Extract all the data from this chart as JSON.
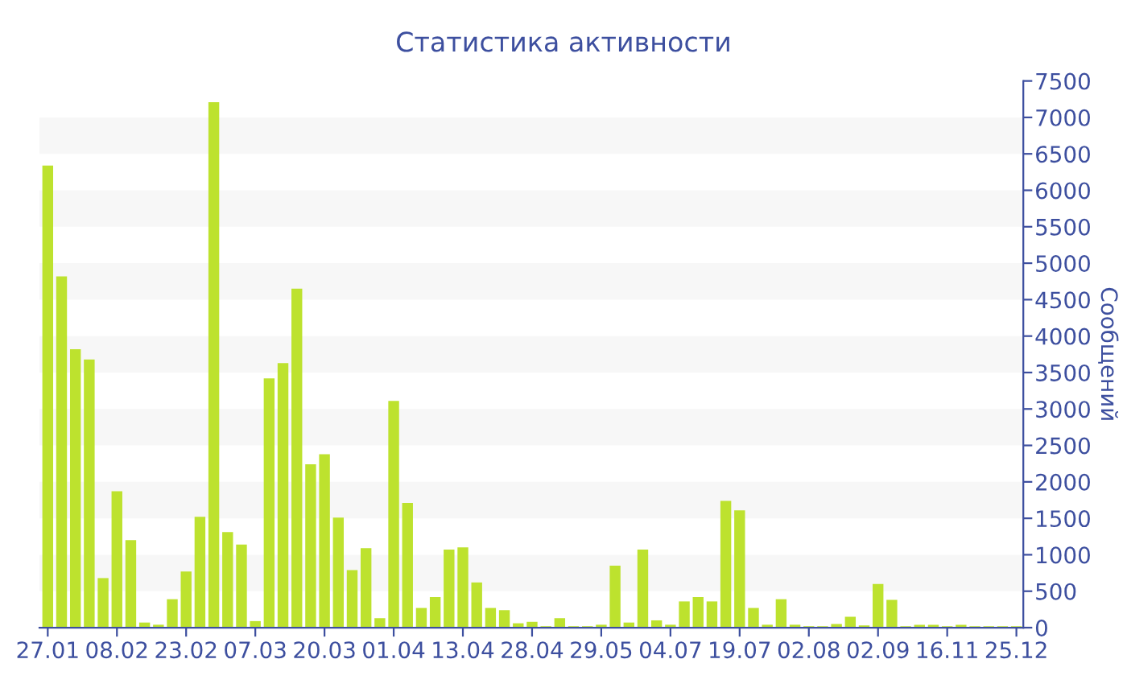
{
  "chart_data": {
    "type": "bar",
    "title": "Статистика активности",
    "ylabel": "Сообщений",
    "categories": [
      "27.01",
      null,
      null,
      null,
      null,
      "08.02",
      null,
      null,
      null,
      null,
      "23.02",
      null,
      null,
      null,
      null,
      "07.03",
      null,
      null,
      null,
      null,
      "20.03",
      null,
      null,
      null,
      null,
      "01.04",
      null,
      null,
      null,
      null,
      "13.04",
      null,
      null,
      null,
      null,
      "28.04",
      null,
      null,
      null,
      null,
      "29.05",
      null,
      null,
      null,
      null,
      "04.07",
      null,
      null,
      null,
      null,
      "19.07",
      null,
      null,
      null,
      null,
      "02.08",
      null,
      null,
      null,
      null,
      "02.09",
      null,
      null,
      null,
      null,
      "16.11",
      null,
      null,
      null,
      null,
      "25.12"
    ],
    "values": [
      6340,
      4820,
      3820,
      3680,
      680,
      1870,
      1200,
      70,
      40,
      390,
      770,
      1520,
      7210,
      1310,
      1140,
      90,
      3420,
      3630,
      4650,
      2240,
      2380,
      1510,
      790,
      1090,
      130,
      3110,
      1710,
      270,
      420,
      1070,
      1100,
      620,
      270,
      240,
      60,
      80,
      20,
      130,
      20,
      20,
      40,
      850,
      70,
      1070,
      100,
      40,
      360,
      420,
      360,
      1740,
      1610,
      270,
      40,
      390,
      40,
      20,
      20,
      50,
      150,
      30,
      600,
      380,
      20,
      40,
      40,
      20,
      40,
      20,
      20,
      20,
      20
    ],
    "color": "#bde22e",
    "ylim": [
      0,
      7500
    ],
    "yticks": [
      0,
      500,
      1000,
      1500,
      2000,
      2500,
      3000,
      3500,
      4000,
      4500,
      5000,
      5500,
      6000,
      6500,
      7000,
      7500
    ],
    "bands": [
      {
        "axis": "y",
        "from": 500,
        "to": 1000,
        "color": "#f7f7f7"
      },
      {
        "axis": "y",
        "from": 1500,
        "to": 2000,
        "color": "#f7f7f7"
      },
      {
        "axis": "y",
        "from": 2500,
        "to": 3000,
        "color": "#f7f7f7"
      },
      {
        "axis": "y",
        "from": 3500,
        "to": 4000,
        "color": "#f7f7f7"
      },
      {
        "axis": "y",
        "from": 4500,
        "to": 5000,
        "color": "#f7f7f7"
      },
      {
        "axis": "y",
        "from": 5500,
        "to": 6000,
        "color": "#f7f7f7"
      },
      {
        "axis": "y",
        "from": 6500,
        "to": 7000,
        "color": "#f7f7f7"
      }
    ],
    "grid": false,
    "legend": false
  }
}
